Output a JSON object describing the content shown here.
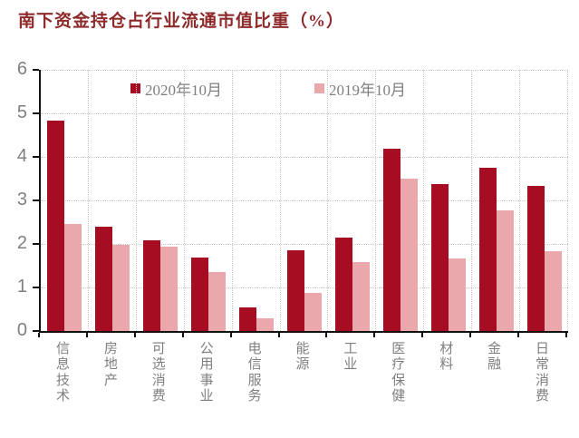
{
  "title": "南下资金持仓占行业流通市值比重（%）",
  "colors": {
    "series_2020": "#A60D23",
    "series_2019": "#EAA8AC",
    "title_text": "#8F2A2B",
    "axis_text": "#7F7F7F",
    "gridline": "#C9C9C9",
    "axis_line": "#111111"
  },
  "legend": {
    "item1": "2020年10月",
    "item2": "2019年10月"
  },
  "chart_data": {
    "type": "bar",
    "title": "南下资金持仓占行业流通市值比重（%）",
    "categories": [
      "信息技术",
      "房地产",
      "可选消费",
      "公用事业",
      "电信服务",
      "能源",
      "工业",
      "医疗保健",
      "材料",
      "金融",
      "日常消费"
    ],
    "series": [
      {
        "name": "2020年10月",
        "color": "#A60D23",
        "values": [
          4.83,
          2.4,
          2.08,
          1.68,
          0.55,
          1.86,
          2.15,
          4.18,
          3.38,
          3.76,
          3.33
        ]
      },
      {
        "name": "2019年10月",
        "color": "#EAA8AC",
        "values": [
          2.45,
          1.97,
          1.94,
          1.35,
          0.29,
          0.88,
          1.58,
          3.5,
          1.67,
          2.77,
          1.83
        ]
      }
    ],
    "xlabel": "",
    "ylabel": "",
    "ylim": [
      0,
      6
    ],
    "yticks": [
      0,
      1,
      2,
      3,
      4,
      5,
      6
    ],
    "grid": "dotted horizontal and vertical gridlines",
    "legend_position": "top-center inside plot"
  }
}
